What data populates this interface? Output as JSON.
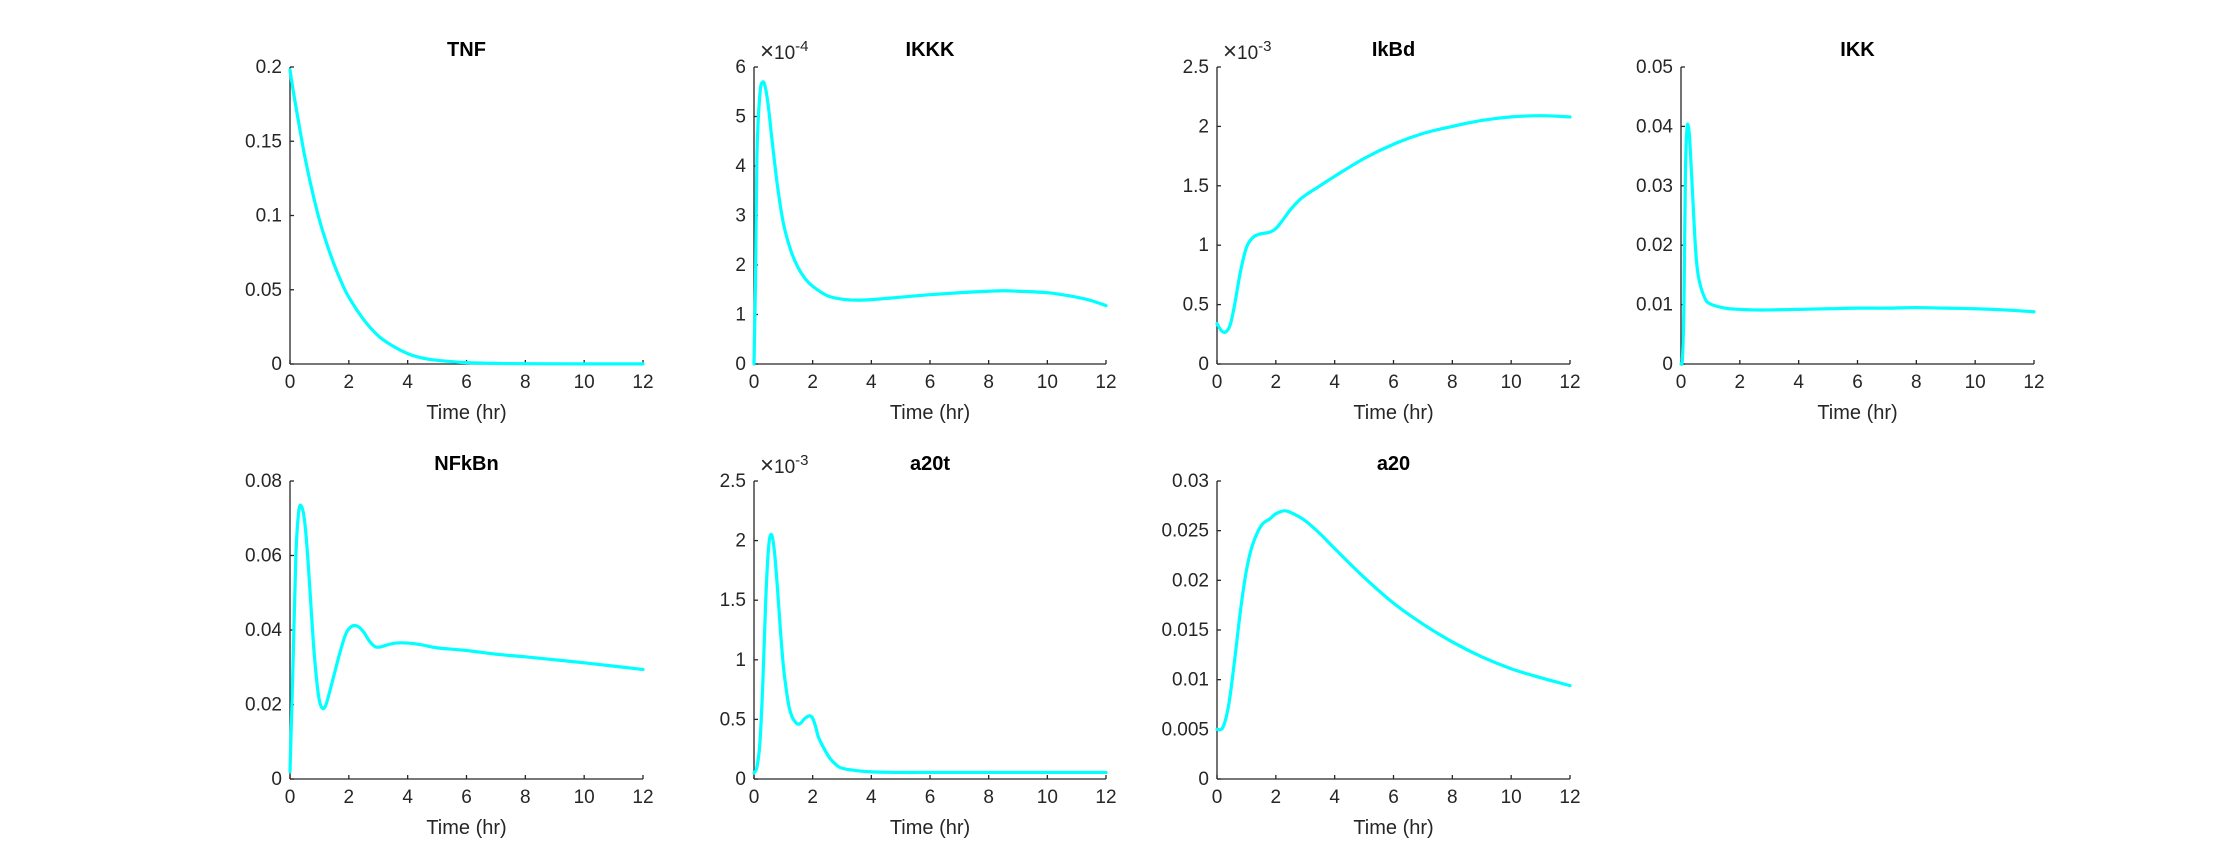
{
  "figure": {
    "background": "#ffffff",
    "line_color": "#00FFFF"
  },
  "chart_data": [
    {
      "type": "line",
      "title": "TNF",
      "xlabel": "Time (hr)",
      "ylabel": "",
      "xlim": [
        0,
        12
      ],
      "ylim": [
        0,
        0.2
      ],
      "xticks": [
        0,
        2,
        4,
        6,
        8,
        10,
        12
      ],
      "xtick_labels": [
        "0",
        "2",
        "4",
        "6",
        "8",
        "10",
        "12"
      ],
      "yticks": [
        0,
        0.05,
        0.1,
        0.15,
        0.2
      ],
      "ytick_labels": [
        "0",
        "0.05",
        "0.1",
        "0.15",
        "0.2"
      ],
      "exponent": "",
      "series": [
        {
          "x": [
            0,
            0.1,
            0.3,
            0.5,
            0.75,
            1,
            1.25,
            1.5,
            1.75,
            2,
            2.5,
            3,
            3.5,
            4,
            4.5,
            5,
            6,
            7,
            8,
            10,
            12
          ],
          "y": [
            0.198,
            0.185,
            0.162,
            0.14,
            0.117,
            0.097,
            0.081,
            0.067,
            0.055,
            0.045,
            0.03,
            0.019,
            0.012,
            0.007,
            0.004,
            0.0025,
            0.0009,
            0.0004,
            0.0002,
            0.0001,
            0.0001
          ]
        }
      ]
    },
    {
      "type": "line",
      "title": "IKKK",
      "xlabel": "Time (hr)",
      "ylabel": "",
      "xlim": [
        0,
        12
      ],
      "ylim": [
        0,
        6
      ],
      "xticks": [
        0,
        2,
        4,
        6,
        8,
        10,
        12
      ],
      "xtick_labels": [
        "0",
        "2",
        "4",
        "6",
        "8",
        "10",
        "12"
      ],
      "yticks": [
        0,
        1,
        2,
        3,
        4,
        5,
        6
      ],
      "ytick_labels": [
        "0",
        "1",
        "2",
        "3",
        "4",
        "5",
        "6"
      ],
      "exponent": "10^-4",
      "series": [
        {
          "x": [
            0,
            0.05,
            0.1,
            0.2,
            0.3,
            0.4,
            0.5,
            0.6,
            0.8,
            1,
            1.25,
            1.5,
            1.75,
            2,
            2.5,
            3,
            3.5,
            4,
            5,
            6,
            7,
            8,
            8.5,
            9,
            10,
            11,
            11.5,
            12
          ],
          "y": [
            0,
            1.6,
            4.2,
            5.45,
            5.7,
            5.55,
            5.15,
            4.6,
            3.6,
            2.85,
            2.3,
            1.95,
            1.72,
            1.57,
            1.38,
            1.31,
            1.29,
            1.3,
            1.35,
            1.4,
            1.44,
            1.47,
            1.48,
            1.47,
            1.44,
            1.35,
            1.28,
            1.18
          ]
        }
      ]
    },
    {
      "type": "line",
      "title": "IkBd",
      "xlabel": "Time (hr)",
      "ylabel": "",
      "xlim": [
        0,
        12
      ],
      "ylim": [
        0,
        2.5
      ],
      "xticks": [
        0,
        2,
        4,
        6,
        8,
        10,
        12
      ],
      "xtick_labels": [
        "0",
        "2",
        "4",
        "6",
        "8",
        "10",
        "12"
      ],
      "yticks": [
        0,
        0.5,
        1,
        1.5,
        2,
        2.5
      ],
      "ytick_labels": [
        "0",
        "0.5",
        "1",
        "1.5",
        "2",
        "2.5"
      ],
      "exponent": "10^-3",
      "series": [
        {
          "x": [
            0,
            0.15,
            0.3,
            0.45,
            0.6,
            0.8,
            1,
            1.2,
            1.4,
            1.6,
            1.8,
            2,
            2.2,
            2.5,
            2.8,
            3,
            3.5,
            4,
            5,
            6,
            7,
            8,
            9,
            10,
            11,
            12
          ],
          "y": [
            0.34,
            0.28,
            0.27,
            0.33,
            0.5,
            0.78,
            0.98,
            1.06,
            1.09,
            1.1,
            1.11,
            1.14,
            1.2,
            1.3,
            1.38,
            1.42,
            1.5,
            1.58,
            1.73,
            1.85,
            1.94,
            2.0,
            2.05,
            2.08,
            2.09,
            2.08
          ]
        }
      ]
    },
    {
      "type": "line",
      "title": "IKK",
      "xlabel": "Time (hr)",
      "ylabel": "",
      "xlim": [
        0,
        12
      ],
      "ylim": [
        0,
        0.05
      ],
      "xticks": [
        0,
        2,
        4,
        6,
        8,
        10,
        12
      ],
      "xtick_labels": [
        "0",
        "2",
        "4",
        "6",
        "8",
        "10",
        "12"
      ],
      "yticks": [
        0,
        0.01,
        0.02,
        0.03,
        0.04,
        0.05
      ],
      "ytick_labels": [
        "0",
        "0.01",
        "0.02",
        "0.03",
        "0.04",
        "0.05"
      ],
      "exponent": "",
      "series": [
        {
          "x": [
            0,
            0.05,
            0.1,
            0.15,
            0.2,
            0.25,
            0.3,
            0.4,
            0.5,
            0.6,
            0.8,
            1,
            1.5,
            2,
            2.5,
            3,
            4,
            5,
            6,
            7,
            8,
            9,
            10,
            11,
            12
          ],
          "y": [
            0,
            0.001,
            0.01,
            0.032,
            0.0395,
            0.04,
            0.0375,
            0.028,
            0.019,
            0.0145,
            0.0112,
            0.0101,
            0.0094,
            0.0092,
            0.0091,
            0.0091,
            0.0092,
            0.0093,
            0.0094,
            0.0094,
            0.0095,
            0.0094,
            0.0093,
            0.0091,
            0.0088
          ]
        }
      ]
    },
    {
      "type": "line",
      "title": "NFkBn",
      "xlabel": "Time (hr)",
      "ylabel": "",
      "xlim": [
        0,
        12
      ],
      "ylim": [
        0,
        0.08
      ],
      "xticks": [
        0,
        2,
        4,
        6,
        8,
        10,
        12
      ],
      "xtick_labels": [
        "0",
        "2",
        "4",
        "6",
        "8",
        "10",
        "12"
      ],
      "yticks": [
        0,
        0.02,
        0.04,
        0.06,
        0.08
      ],
      "ytick_labels": [
        "0",
        "0.02",
        "0.04",
        "0.06",
        "0.08"
      ],
      "exponent": "",
      "series": [
        {
          "x": [
            0,
            0.1,
            0.2,
            0.3,
            0.4,
            0.5,
            0.6,
            0.7,
            0.8,
            0.9,
            1,
            1.1,
            1.2,
            1.3,
            1.5,
            1.7,
            1.9,
            2.1,
            2.3,
            2.5,
            2.7,
            2.9,
            3.1,
            3.3,
            3.6,
            4,
            4.5,
            5,
            6,
            7,
            8,
            9,
            10,
            11,
            12
          ],
          "y": [
            0.002,
            0.03,
            0.06,
            0.072,
            0.073,
            0.069,
            0.06,
            0.048,
            0.036,
            0.027,
            0.021,
            0.019,
            0.0195,
            0.022,
            0.028,
            0.034,
            0.039,
            0.041,
            0.041,
            0.0395,
            0.037,
            0.0355,
            0.0355,
            0.036,
            0.0365,
            0.0365,
            0.036,
            0.0352,
            0.0345,
            0.0335,
            0.0328,
            0.032,
            0.0312,
            0.0303,
            0.0294
          ]
        }
      ]
    },
    {
      "type": "line",
      "title": "a20t",
      "xlabel": "Time (hr)",
      "ylabel": "",
      "xlim": [
        0,
        12
      ],
      "ylim": [
        0,
        2.5
      ],
      "xticks": [
        0,
        2,
        4,
        6,
        8,
        10,
        12
      ],
      "xtick_labels": [
        "0",
        "2",
        "4",
        "6",
        "8",
        "10",
        "12"
      ],
      "yticks": [
        0,
        0.5,
        1,
        1.5,
        2,
        2.5
      ],
      "ytick_labels": [
        "0",
        "0.5",
        "1",
        "1.5",
        "2",
        "2.5"
      ],
      "exponent": "10^-3",
      "series": [
        {
          "x": [
            0,
            0.1,
            0.2,
            0.3,
            0.4,
            0.5,
            0.6,
            0.7,
            0.8,
            0.9,
            1,
            1.1,
            1.2,
            1.3,
            1.4,
            1.5,
            1.6,
            1.7,
            1.8,
            1.9,
            2,
            2.1,
            2.2,
            2.4,
            2.6,
            2.8,
            3,
            3.5,
            4,
            5,
            6,
            7,
            8,
            9,
            10,
            11,
            12
          ],
          "y": [
            0.05,
            0.1,
            0.3,
            0.8,
            1.5,
            1.95,
            2.05,
            1.9,
            1.6,
            1.25,
            0.95,
            0.75,
            0.6,
            0.52,
            0.48,
            0.46,
            0.47,
            0.5,
            0.52,
            0.53,
            0.51,
            0.44,
            0.35,
            0.25,
            0.17,
            0.12,
            0.09,
            0.07,
            0.06,
            0.055,
            0.055,
            0.055,
            0.055,
            0.055,
            0.055,
            0.055,
            0.055
          ]
        }
      ]
    },
    {
      "type": "line",
      "title": "a20",
      "xlabel": "Time (hr)",
      "ylabel": "",
      "xlim": [
        0,
        12
      ],
      "ylim": [
        0,
        0.03
      ],
      "xticks": [
        0,
        2,
        4,
        6,
        8,
        10,
        12
      ],
      "xtick_labels": [
        "0",
        "2",
        "4",
        "6",
        "8",
        "10",
        "12"
      ],
      "yticks": [
        0,
        0.005,
        0.01,
        0.015,
        0.02,
        0.025,
        0.03
      ],
      "ytick_labels": [
        "0",
        "0.005",
        "0.01",
        "0.015",
        "0.02",
        "0.025",
        "0.03"
      ],
      "exponent": "",
      "series": [
        {
          "x": [
            0,
            0.2,
            0.4,
            0.6,
            0.8,
            1,
            1.2,
            1.5,
            1.8,
            2,
            2.3,
            2.6,
            3,
            3.5,
            4,
            5,
            6,
            7,
            8,
            9,
            10,
            11,
            12
          ],
          "y": [
            0.005,
            0.0052,
            0.0075,
            0.012,
            0.017,
            0.021,
            0.0235,
            0.0255,
            0.0262,
            0.0267,
            0.027,
            0.0267,
            0.026,
            0.0247,
            0.0232,
            0.0203,
            0.0177,
            0.0156,
            0.0138,
            0.0123,
            0.0111,
            0.0102,
            0.0094
          ]
        }
      ]
    }
  ]
}
